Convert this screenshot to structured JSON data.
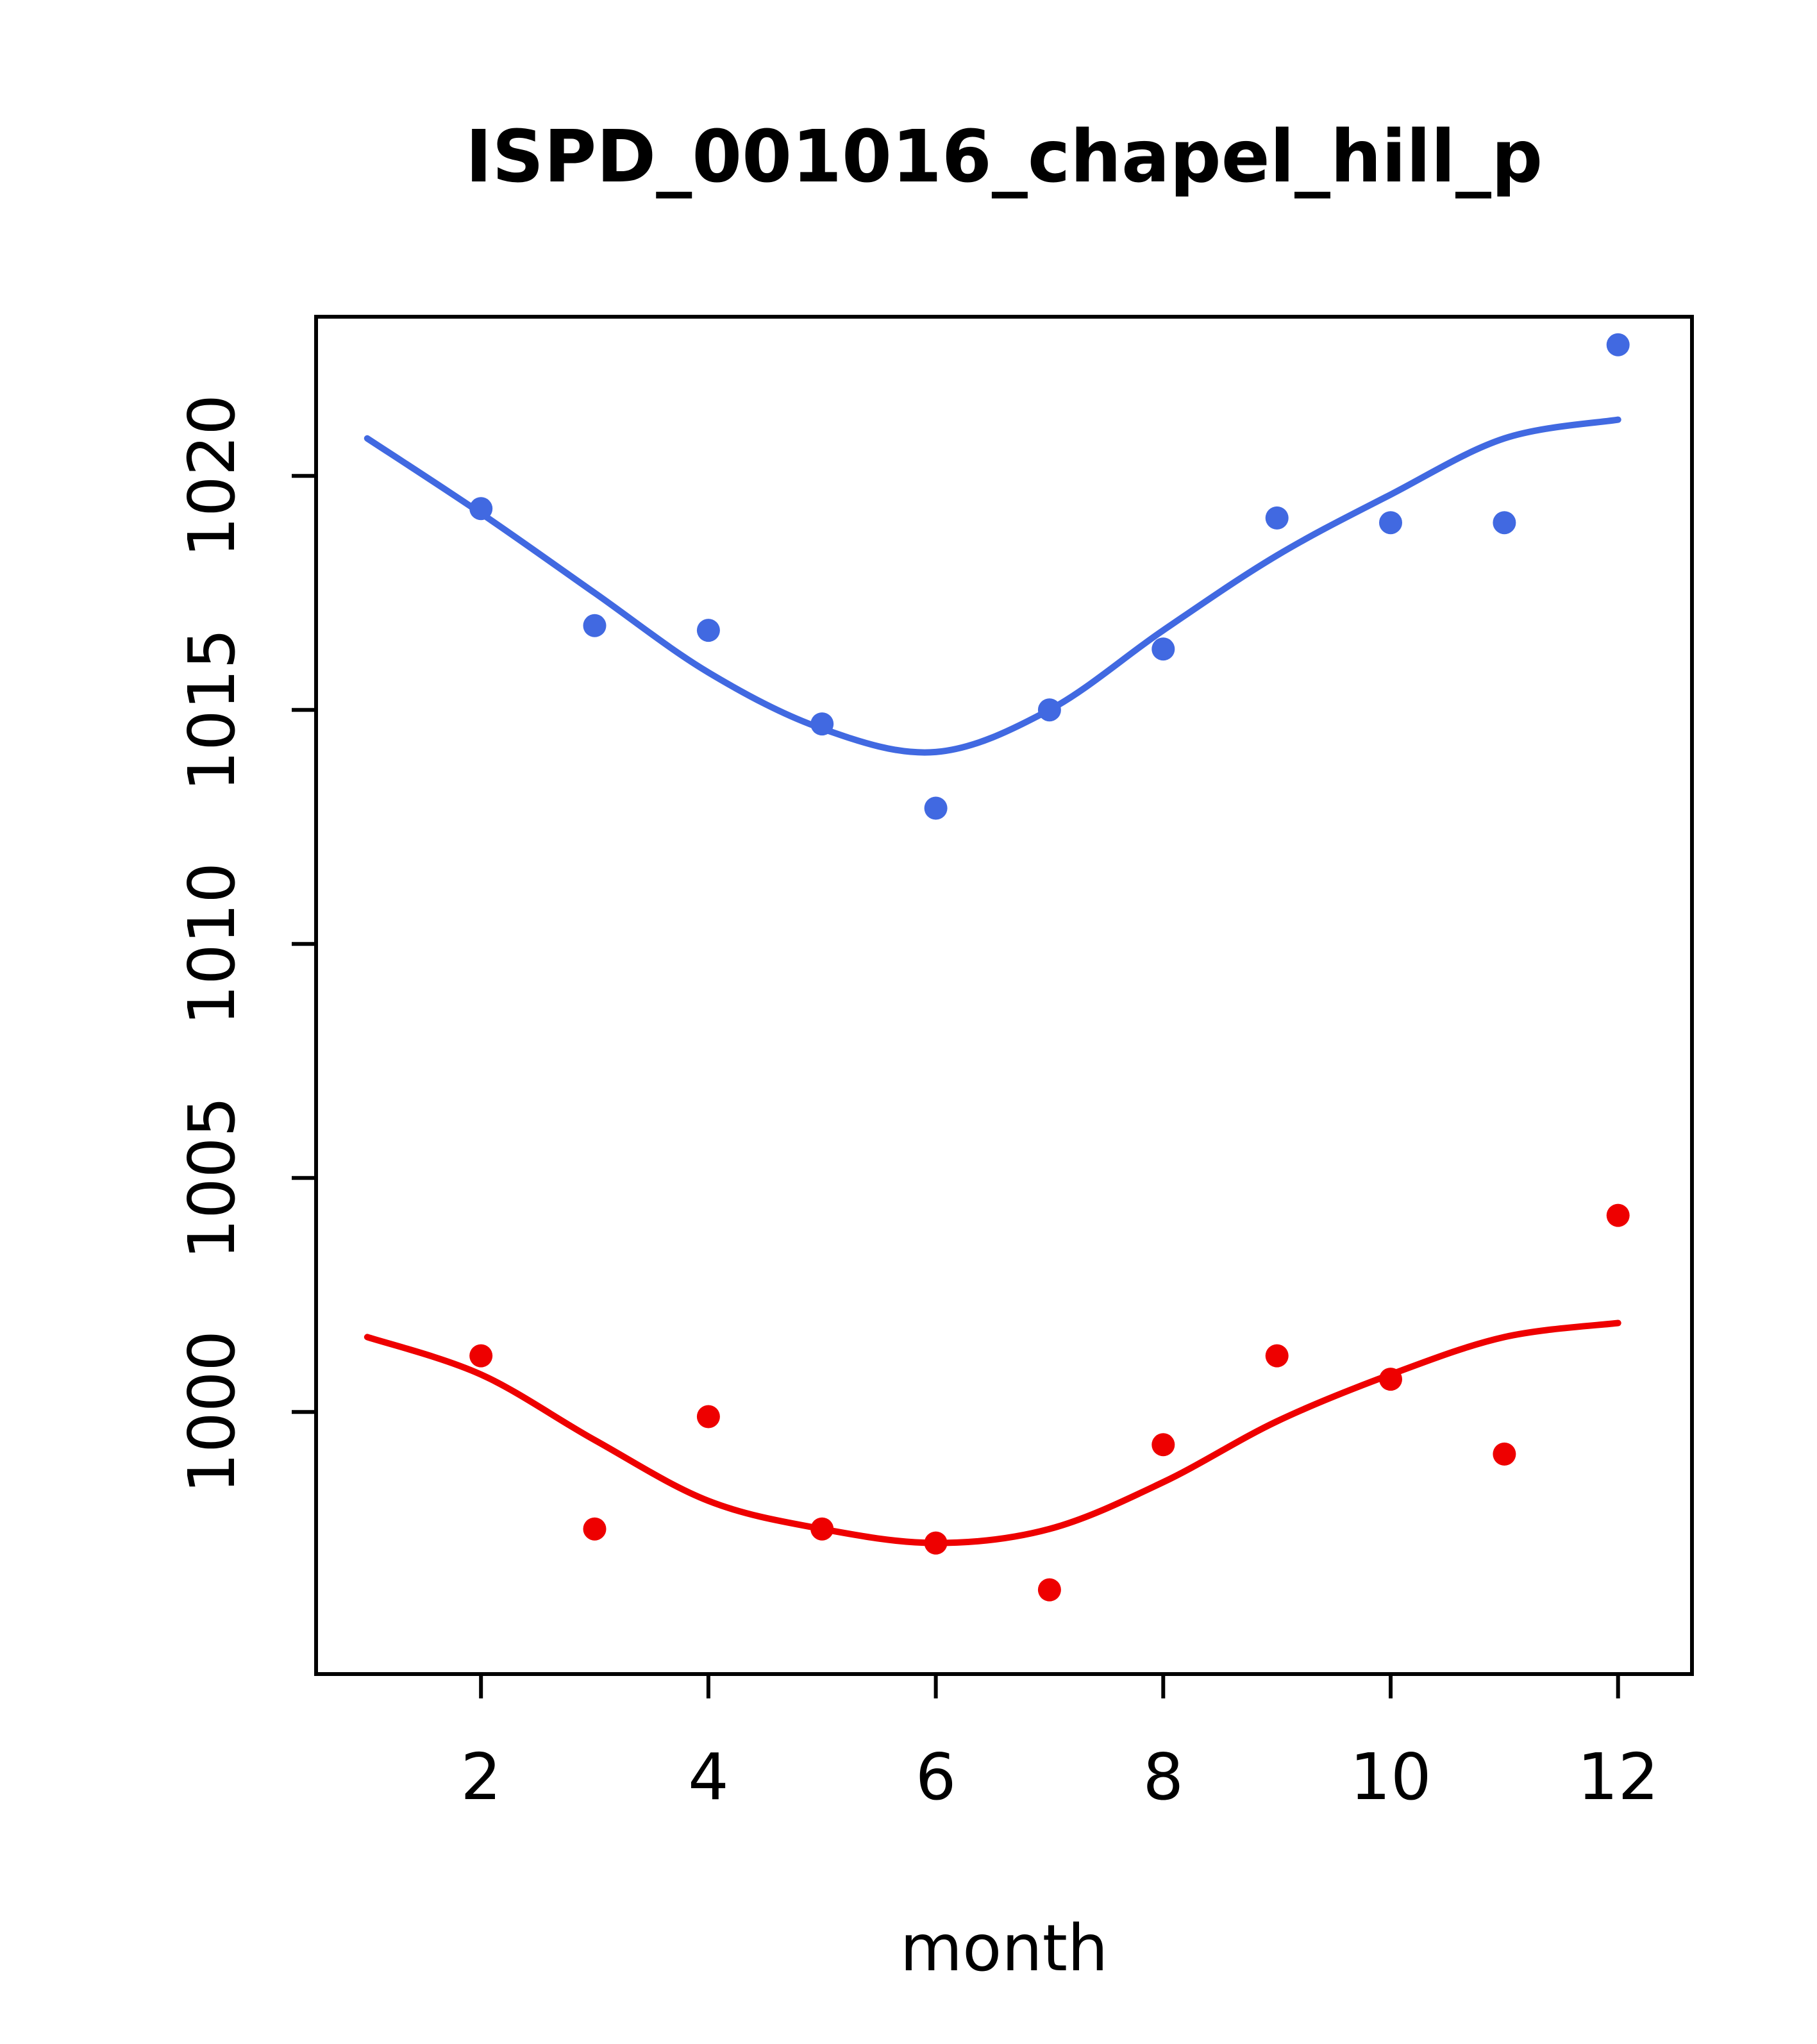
{
  "title": "ISPD_001016_chapel_hill_p",
  "chart_data": {
    "type": "scatter",
    "title": "ISPD_001016_chapel_hill_p",
    "xlabel": "month",
    "ylabel": "",
    "grid": false,
    "legend": "none",
    "xlim": [
      0.55,
      12.65
    ],
    "ylim": [
      994.4,
      1023.4
    ],
    "xticks": [
      2,
      4,
      6,
      8,
      10,
      12
    ],
    "yticks": [
      1000,
      1005,
      1010,
      1015,
      1020
    ],
    "colors": {
      "series_blue": "#4169E1",
      "series_red": "#EE0000",
      "axis": "#000000"
    },
    "series": [
      {
        "name": "blue-loess-line",
        "kind": "line",
        "color": "#4169E1",
        "x": [
          1,
          2,
          3,
          4,
          5,
          6,
          7,
          8,
          9,
          10,
          11,
          12
        ],
        "y": [
          1020.8,
          1019.2,
          1017.5,
          1015.8,
          1014.6,
          1014.1,
          1015.0,
          1016.7,
          1018.3,
          1019.6,
          1020.8,
          1021.2
        ]
      },
      {
        "name": "red-loess-line",
        "kind": "line",
        "color": "#EE0000",
        "x": [
          1,
          2,
          3,
          4,
          5,
          6,
          7,
          8,
          9,
          10,
          11,
          12
        ],
        "y": [
          1001.6,
          1000.8,
          999.4,
          998.1,
          997.5,
          997.2,
          997.5,
          998.5,
          999.8,
          1000.8,
          1001.6,
          1001.9
        ]
      },
      {
        "name": "blue-points",
        "kind": "points",
        "color": "#4169E1",
        "x": [
          2,
          3,
          4,
          5,
          6,
          7,
          8,
          9,
          10,
          11,
          12
        ],
        "y": [
          1019.3,
          1016.8,
          1016.7,
          1014.7,
          1012.9,
          1015.0,
          1016.3,
          1019.1,
          1019.0,
          1019.0,
          1022.8
        ]
      },
      {
        "name": "red-points",
        "kind": "points",
        "color": "#EE0000",
        "x": [
          2,
          3,
          4,
          5,
          6,
          7,
          8,
          9,
          10,
          11,
          12
        ],
        "y": [
          1001.2,
          997.5,
          999.9,
          997.5,
          997.2,
          996.2,
          999.3,
          1001.2,
          1000.7,
          999.1,
          1004.2
        ]
      }
    ]
  }
}
